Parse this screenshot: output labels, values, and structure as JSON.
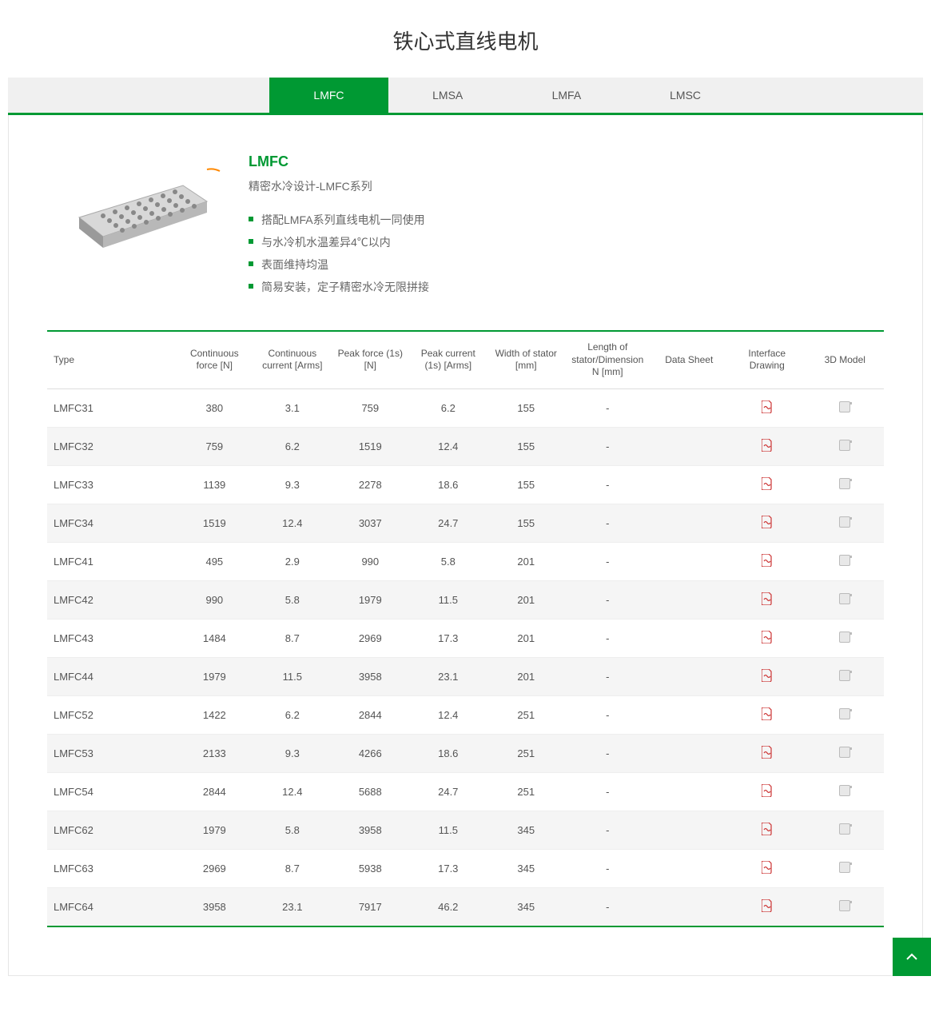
{
  "pageTitle": "铁心式直线电机",
  "tabs": [
    "LMFC",
    "LMSA",
    "LMFA",
    "LMSC"
  ],
  "activeTabIndex": 0,
  "intro": {
    "title": "LMFC",
    "subtitle": "精密水冷设计-LMFC系列",
    "bullets": [
      "搭配LMFA系列直线电机一同使用",
      "与水冷机水温差异4℃以内",
      "表面维持均温",
      "简易安装，定子精密水冷无限拼接"
    ]
  },
  "colors": {
    "accent": "#009933",
    "pdfIcon": "#cc3333",
    "headerBg": "#f0f0f0",
    "rowAlt": "#f5f5f5",
    "text": "#555555"
  },
  "table": {
    "columns": [
      "Type",
      "Continuous force [N]",
      "Continuous current [Arms]",
      "Peak force (1s) [N]",
      "Peak current (1s) [Arms]",
      "Width of stator [mm]",
      "Length of stator/Dimension N [mm]",
      "Data Sheet",
      "Interface Drawing",
      "3D Model"
    ],
    "rows": [
      {
        "type": "LMFC31",
        "cf": "380",
        "cc": "3.1",
        "pf": "759",
        "pc": "6.2",
        "w": "155",
        "l": "-",
        "ds": "",
        "id": "pdf",
        "m": "doc"
      },
      {
        "type": "LMFC32",
        "cf": "759",
        "cc": "6.2",
        "pf": "1519",
        "pc": "12.4",
        "w": "155",
        "l": "-",
        "ds": "",
        "id": "pdf",
        "m": "doc"
      },
      {
        "type": "LMFC33",
        "cf": "1139",
        "cc": "9.3",
        "pf": "2278",
        "pc": "18.6",
        "w": "155",
        "l": "-",
        "ds": "",
        "id": "pdf",
        "m": "doc"
      },
      {
        "type": "LMFC34",
        "cf": "1519",
        "cc": "12.4",
        "pf": "3037",
        "pc": "24.7",
        "w": "155",
        "l": "-",
        "ds": "",
        "id": "pdf",
        "m": "doc"
      },
      {
        "type": "LMFC41",
        "cf": "495",
        "cc": "2.9",
        "pf": "990",
        "pc": "5.8",
        "w": "201",
        "l": "-",
        "ds": "",
        "id": "pdf",
        "m": "doc"
      },
      {
        "type": "LMFC42",
        "cf": "990",
        "cc": "5.8",
        "pf": "1979",
        "pc": "11.5",
        "w": "201",
        "l": "-",
        "ds": "",
        "id": "pdf",
        "m": "doc"
      },
      {
        "type": "LMFC43",
        "cf": "1484",
        "cc": "8.7",
        "pf": "2969",
        "pc": "17.3",
        "w": "201",
        "l": "-",
        "ds": "",
        "id": "pdf",
        "m": "doc"
      },
      {
        "type": "LMFC44",
        "cf": "1979",
        "cc": "11.5",
        "pf": "3958",
        "pc": "23.1",
        "w": "201",
        "l": "-",
        "ds": "",
        "id": "pdf",
        "m": "doc"
      },
      {
        "type": "LMFC52",
        "cf": "1422",
        "cc": "6.2",
        "pf": "2844",
        "pc": "12.4",
        "w": "251",
        "l": "-",
        "ds": "",
        "id": "pdf",
        "m": "doc"
      },
      {
        "type": "LMFC53",
        "cf": "2133",
        "cc": "9.3",
        "pf": "4266",
        "pc": "18.6",
        "w": "251",
        "l": "-",
        "ds": "",
        "id": "pdf",
        "m": "doc"
      },
      {
        "type": "LMFC54",
        "cf": "2844",
        "cc": "12.4",
        "pf": "5688",
        "pc": "24.7",
        "w": "251",
        "l": "-",
        "ds": "",
        "id": "pdf",
        "m": "doc"
      },
      {
        "type": "LMFC62",
        "cf": "1979",
        "cc": "5.8",
        "pf": "3958",
        "pc": "11.5",
        "w": "345",
        "l": "-",
        "ds": "",
        "id": "pdf",
        "m": "doc"
      },
      {
        "type": "LMFC63",
        "cf": "2969",
        "cc": "8.7",
        "pf": "5938",
        "pc": "17.3",
        "w": "345",
        "l": "-",
        "ds": "",
        "id": "pdf",
        "m": "doc"
      },
      {
        "type": "LMFC64",
        "cf": "3958",
        "cc": "23.1",
        "pf": "7917",
        "pc": "46.2",
        "w": "345",
        "l": "-",
        "ds": "",
        "id": "pdf",
        "m": "doc"
      }
    ]
  }
}
